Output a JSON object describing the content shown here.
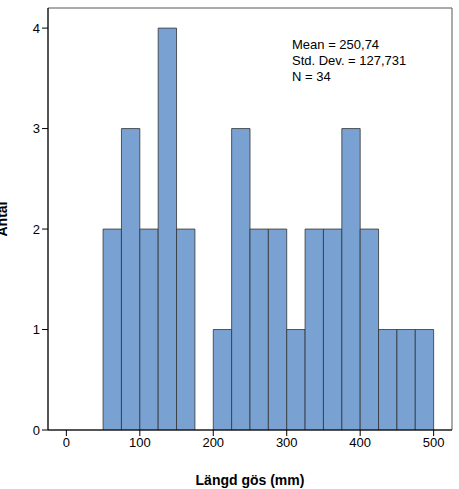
{
  "chart_data": {
    "type": "histogram",
    "bins": [
      50,
      75,
      100,
      125,
      150,
      175,
      200,
      225,
      250,
      275,
      300,
      325,
      350,
      375,
      400,
      425,
      450,
      475,
      500
    ],
    "counts": [
      2,
      3,
      2,
      4,
      2,
      0,
      1,
      3,
      2,
      2,
      1,
      2,
      2,
      3,
      2,
      1,
      1,
      1
    ],
    "color": "#79a2d3",
    "x_label": "Längd gös (mm)",
    "y_label": "Antal",
    "xlim": [
      -25,
      525
    ],
    "xticks": [
      0,
      100,
      200,
      300,
      400,
      500
    ],
    "ylim": [
      0,
      4.2
    ],
    "yticks": [
      0,
      1,
      2,
      3,
      4
    ],
    "annotations": [
      "Mean = 250,74",
      "Std. Dev. = 127,731",
      "N = 34"
    ]
  }
}
